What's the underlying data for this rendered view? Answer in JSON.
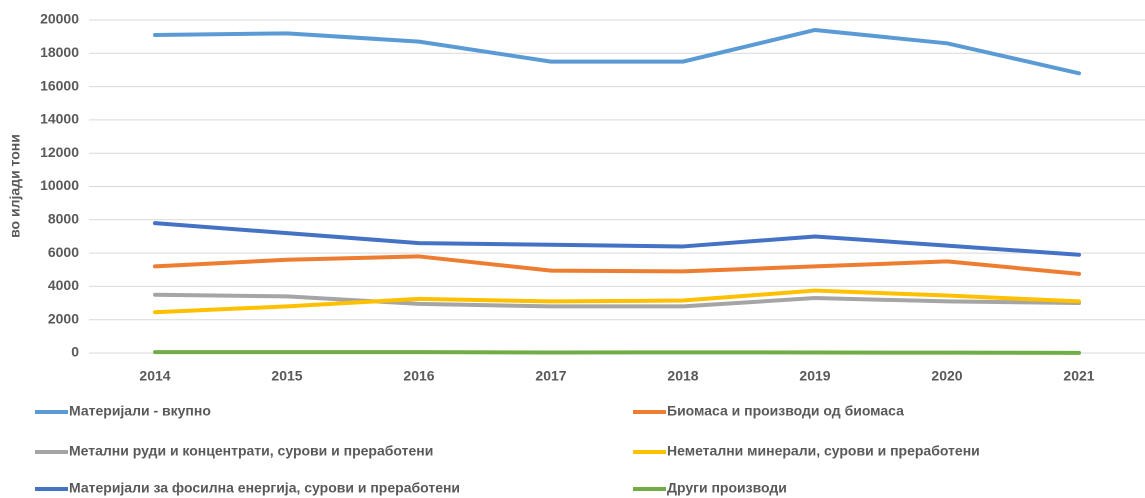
{
  "chart_data": {
    "type": "line",
    "y_label": "во илјади тони",
    "categories": [
      "2014",
      "2015",
      "2016",
      "2017",
      "2018",
      "2019",
      "2020",
      "2021"
    ],
    "series": [
      {
        "name": "Материјали - вкупно",
        "color": "#5b9bd5",
        "values": [
          19100,
          19200,
          18700,
          17500,
          17500,
          19400,
          18600,
          16800
        ]
      },
      {
        "name": "Биомаса и производи од биомаса",
        "color": "#ed7d31",
        "values": [
          5200,
          5600,
          5800,
          4950,
          4900,
          5200,
          5500,
          4750
        ]
      },
      {
        "name": "Метални руди и концентрати, сурови и преработени",
        "color": "#a5a5a5",
        "values": [
          3500,
          3400,
          2950,
          2800,
          2800,
          3300,
          3100,
          3000
        ]
      },
      {
        "name": "Неметални минерали, сурови и преработени",
        "color": "#ffc000",
        "values": [
          2450,
          2800,
          3250,
          3100,
          3150,
          3750,
          3450,
          3100
        ]
      },
      {
        "name": "Материјали за фосилна енергија, сурови и преработени",
        "color": "#4472c4",
        "values": [
          7800,
          7200,
          6600,
          6500,
          6400,
          7000,
          6450,
          5900
        ]
      },
      {
        "name": "Други производи",
        "color": "#70ad47",
        "values": [
          50,
          50,
          50,
          30,
          40,
          30,
          20,
          10
        ]
      }
    ],
    "ylim": [
      0,
      20000
    ],
    "yticks": [
      0,
      2000,
      4000,
      6000,
      8000,
      10000,
      12000,
      14000,
      16000,
      18000,
      20000
    ],
    "grid": true,
    "legend": "bottom"
  }
}
